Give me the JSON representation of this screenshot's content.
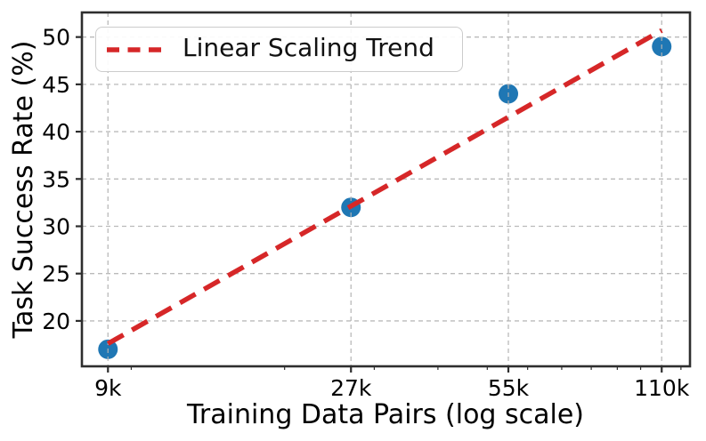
{
  "chart_data": {
    "type": "scatter",
    "title": "",
    "xlabel": "Training Data Pairs (log scale)",
    "ylabel": "Task Success Rate (%)",
    "x_scale": "log",
    "grid": "dashed, both axes, drawn above markers",
    "xlim": [
      8000,
      125000
    ],
    "ylim": [
      15.2,
      52.6
    ],
    "x_ticks": [
      9000,
      27000,
      55000,
      110000
    ],
    "x_tick_labels": [
      "9k",
      "27k",
      "55k",
      "110k"
    ],
    "x_minor_ticks": [
      10000,
      20000,
      30000,
      40000,
      50000,
      60000,
      70000,
      80000,
      90000,
      100000,
      120000
    ],
    "y_ticks": [
      20,
      25,
      30,
      35,
      40,
      45,
      50
    ],
    "y_tick_labels": [
      "20",
      "25",
      "30",
      "35",
      "40",
      "45",
      "50"
    ],
    "points": {
      "x": [
        9000,
        27000,
        55000,
        110000
      ],
      "y": [
        17,
        32,
        44,
        49
      ]
    },
    "trend": {
      "label": "Linear Scaling Trend",
      "x": [
        9000,
        110000
      ],
      "y": [
        17.6,
        50.7
      ]
    },
    "legend": {
      "position": "upper left",
      "label": "Linear Scaling Trend"
    },
    "colors": {
      "point": "#1f77b4",
      "trend": "#d62728",
      "grid": "#b3b3b3",
      "spine": "#2e2e2e",
      "tick": "#2e2e2e",
      "text": "#000000"
    }
  }
}
